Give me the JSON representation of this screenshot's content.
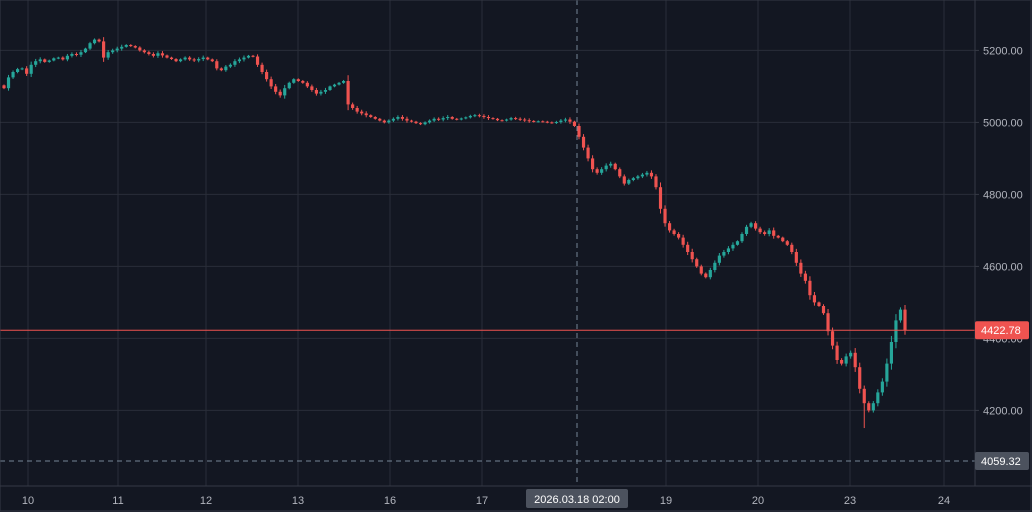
{
  "chart_data": {
    "type": "candlestick",
    "x_axis_labels": [
      "10",
      "11",
      "12",
      "13",
      "16",
      "17",
      "18",
      "19",
      "20",
      "23",
      "24"
    ],
    "y_axis_ticks": [
      4200,
      4400,
      4600,
      4800,
      5000,
      5200
    ],
    "y_tick_labels": [
      "4200.00",
      "4400.00",
      "4600.00",
      "4800.00",
      "5000.00",
      "5200.00"
    ],
    "ylim": [
      3990,
      5340
    ],
    "current_price": 4422.78,
    "current_price_label": "4422.78",
    "crosshair": {
      "time_label": "2026.03.18 02:00",
      "price_label": "4059.32",
      "price": 4059.32
    },
    "colors": {
      "background": "#131722",
      "up": "#26a69a",
      "down": "#ef5350",
      "grid": "#2a2e39",
      "axis_text": "#b2b5be",
      "price_line": "#ef5350",
      "crosshair": "#758696"
    },
    "grid": true,
    "series_close": [
      5095,
      5125,
      5140,
      5148,
      5150,
      5135,
      5160,
      5170,
      5175,
      5168,
      5172,
      5178,
      5180,
      5175,
      5185,
      5190,
      5188,
      5195,
      5205,
      5220,
      5230,
      5225,
      5180,
      5195,
      5200,
      5205,
      5210,
      5215,
      5212,
      5208,
      5200,
      5195,
      5190,
      5185,
      5192,
      5186,
      5180,
      5176,
      5170,
      5175,
      5180,
      5175,
      5172,
      5176,
      5180,
      5175,
      5170,
      5150,
      5145,
      5155,
      5160,
      5170,
      5175,
      5180,
      5185,
      5183,
      5160,
      5140,
      5120,
      5100,
      5085,
      5075,
      5095,
      5110,
      5120,
      5115,
      5110,
      5100,
      5090,
      5080,
      5085,
      5090,
      5100,
      5105,
      5110,
      5115,
      5050,
      5040,
      5030,
      5025,
      5020,
      5015,
      5010,
      5005,
      5000,
      5005,
      5010,
      5015,
      5010,
      5005,
      5002,
      4998,
      4995,
      5000,
      5005,
      5010,
      5008,
      5012,
      5015,
      5010,
      5008,
      5011,
      5014,
      5018,
      5020,
      5018,
      5015,
      5012,
      5010,
      5006,
      5005,
      5008,
      5012,
      5010,
      5008,
      5006,
      5004,
      5002,
      5003,
      5002,
      5000,
      4999,
      5001,
      5005,
      5008,
      5002,
      4990,
      4960,
      4930,
      4900,
      4870,
      4860,
      4870,
      4880,
      4885,
      4870,
      4850,
      4830,
      4840,
      4845,
      4850,
      4855,
      4860,
      4850,
      4820,
      4760,
      4720,
      4700,
      4690,
      4680,
      4660,
      4640,
      4620,
      4600,
      4580,
      4570,
      4590,
      4610,
      4630,
      4640,
      4650,
      4660,
      4670,
      4690,
      4710,
      4720,
      4705,
      4695,
      4690,
      4700,
      4685,
      4680,
      4670,
      4660,
      4640,
      4610,
      4580,
      4560,
      4520,
      4500,
      4490,
      4470,
      4420,
      4380,
      4340,
      4330,
      4350,
      4360,
      4320,
      4260,
      4220,
      4200,
      4220,
      4250,
      4280,
      4330,
      4390,
      4450,
      4480,
      4422.78
    ]
  }
}
